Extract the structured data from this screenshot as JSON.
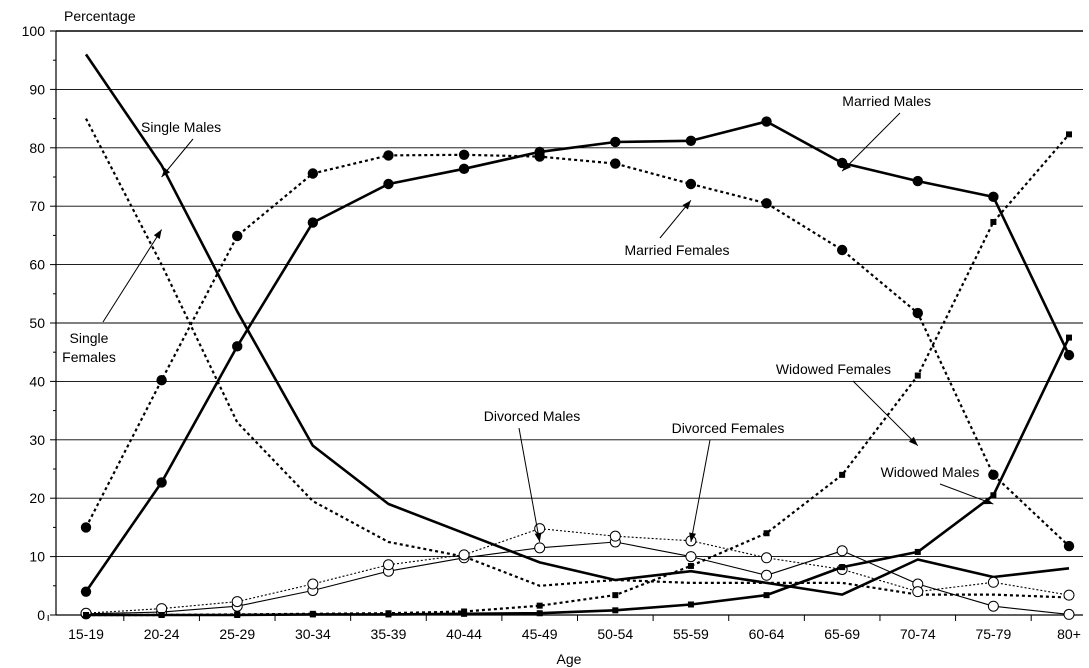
{
  "chart_data": {
    "type": "line",
    "xlabel": "Age",
    "ylabel": "Percentage",
    "ylim": [
      0,
      100
    ],
    "yticks": [
      0,
      10,
      20,
      30,
      40,
      50,
      60,
      70,
      80,
      90,
      100
    ],
    "grid": true,
    "categories": [
      "15-19",
      "20-24",
      "25-29",
      "30-34",
      "35-39",
      "40-44",
      "45-49",
      "50-54",
      "55-59",
      "60-64",
      "65-69",
      "70-74",
      "75-79",
      "80+"
    ],
    "series": [
      {
        "name": "Single Males",
        "line": "solid-thick",
        "marker": "none",
        "values": [
          96,
          77,
          52,
          29,
          19,
          14,
          9,
          6,
          7.5,
          5.5,
          3.5,
          9.5,
          6.5,
          8
        ]
      },
      {
        "name": "Single Females",
        "line": "dotted-thick",
        "marker": "none",
        "values": [
          85,
          60,
          33,
          19.5,
          12.5,
          10,
          5,
          6,
          5.5,
          5.5,
          5.5,
          3.5,
          3.5,
          3
        ]
      },
      {
        "name": "Married Males",
        "line": "solid-thick",
        "marker": "filled-circle",
        "values": [
          4,
          22.7,
          46,
          67.2,
          73.8,
          76.4,
          79.3,
          81,
          81.2,
          84.5,
          77.4,
          74.3,
          71.6,
          44.5
        ]
      },
      {
        "name": "Married Females",
        "line": "dotted-thick",
        "marker": "filled-circle",
        "values": [
          15,
          40.2,
          64.9,
          75.6,
          78.7,
          78.8,
          78.5,
          77.3,
          73.8,
          70.5,
          62.5,
          51.7,
          24,
          11.8
        ]
      },
      {
        "name": "Divorced Males",
        "line": "solid-thin",
        "marker": "open-circle",
        "values": [
          0.2,
          0.5,
          1.5,
          4.2,
          7.5,
          9.8,
          11.5,
          12.5,
          10,
          6.8,
          11,
          5.3,
          1.5,
          0.1
        ]
      },
      {
        "name": "Divorced Females",
        "line": "dotted-thin",
        "marker": "open-circle",
        "values": [
          0.3,
          1.1,
          2.3,
          5.3,
          8.6,
          10.3,
          14.8,
          13.5,
          12.7,
          9.8,
          7.8,
          4,
          5.6,
          3.4
        ]
      },
      {
        "name": "Widowed Males",
        "line": "solid-thick",
        "marker": "filled-square",
        "values": [
          0,
          0,
          0,
          0.1,
          0.1,
          0.2,
          0.3,
          0.8,
          1.8,
          3.4,
          8.2,
          10.8,
          20.5,
          47.5
        ]
      },
      {
        "name": "Widowed Females",
        "line": "dotted-thick",
        "marker": "filled-square",
        "values": [
          0,
          0,
          0.1,
          0.2,
          0.3,
          0.6,
          1.6,
          3.4,
          8.4,
          14,
          24,
          41,
          67.3,
          82.3
        ]
      }
    ],
    "annotations": [
      {
        "series": "Single Males",
        "text": [
          "Single Males"
        ],
        "target_category": "20-24",
        "target_value": 75
      },
      {
        "series": "Single Females",
        "text": [
          "Single",
          "Females"
        ],
        "target_category": "20-24",
        "target_value": 66
      },
      {
        "series": "Married Males",
        "text": [
          "Married Males"
        ],
        "target_category": "65-69",
        "target_value": 76
      },
      {
        "series": "Married Females",
        "text": [
          "Married Females"
        ],
        "target_category": "55-59",
        "target_value": 71
      },
      {
        "series": "Widowed Females",
        "text": [
          "Widowed Females"
        ],
        "target_category": "70-74",
        "target_value": 29
      },
      {
        "series": "Divorced Males",
        "text": [
          "Divorced Males"
        ],
        "target_category": "45-49",
        "target_value": 12.5
      },
      {
        "series": "Divorced Females",
        "text": [
          "Divorced Females"
        ],
        "target_category": "55-59",
        "target_value": 12.5
      },
      {
        "series": "Widowed Males",
        "text": [
          "Widowed Males"
        ],
        "target_category": "75-79",
        "target_value": 19
      }
    ]
  }
}
